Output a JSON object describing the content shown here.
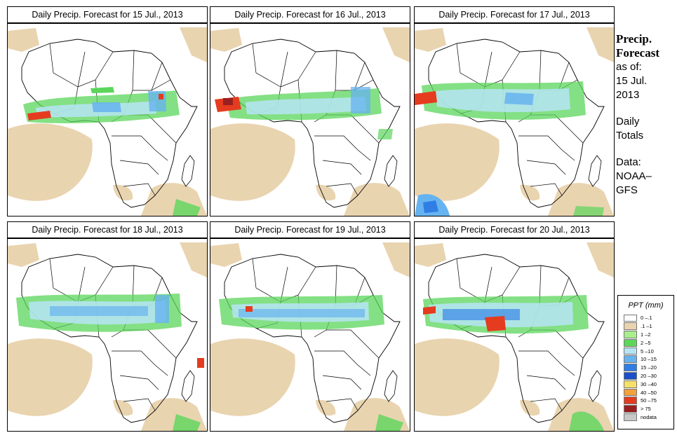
{
  "panels": [
    {
      "title": "Daily Precip. Forecast for  15 Jul., 2013"
    },
    {
      "title": "Daily Precip. Forecast for  16 Jul., 2013"
    },
    {
      "title": "Daily Precip. Forecast for  17 Jul., 2013"
    },
    {
      "title": "Daily Precip. Forecast for  18 Jul., 2013"
    },
    {
      "title": "Daily Precip. Forecast for  19 Jul., 2013"
    },
    {
      "title": "Daily Precip. Forecast for  20 Jul., 2013"
    }
  ],
  "side": {
    "title_line1": "Precip.",
    "title_line2": "Forecast",
    "asof_label": "as of:",
    "asof_date1": "15 Jul.",
    "asof_date2": "2013",
    "daily1": "Daily",
    "daily2": "Totals",
    "data1": "Data:",
    "data2": "NOAA–",
    "data3": "GFS"
  },
  "legend": {
    "title": "PPT (mm)",
    "items": [
      {
        "label": "0 –.1",
        "color": "#ffffff"
      },
      {
        "label": ".1 –1",
        "color": "#e9d4b0"
      },
      {
        "label": "1 –2",
        "color": "#a8ef8c"
      },
      {
        "label": "2 –5",
        "color": "#5bd65b"
      },
      {
        "label": "5 –10",
        "color": "#b6e4f6"
      },
      {
        "label": "10 –15",
        "color": "#66b3f0"
      },
      {
        "label": "15 –20",
        "color": "#2e7ee6"
      },
      {
        "label": "20 –30",
        "color": "#1a4fc9"
      },
      {
        "label": "30 –40",
        "color": "#f5e16a"
      },
      {
        "label": "40 –50",
        "color": "#f4a13a"
      },
      {
        "label": "50 –75",
        "color": "#e53b1e"
      },
      {
        "label": "> 75",
        "color": "#9b1f1f"
      },
      {
        "label": "nodata",
        "color": "#c8c8c8"
      }
    ]
  }
}
